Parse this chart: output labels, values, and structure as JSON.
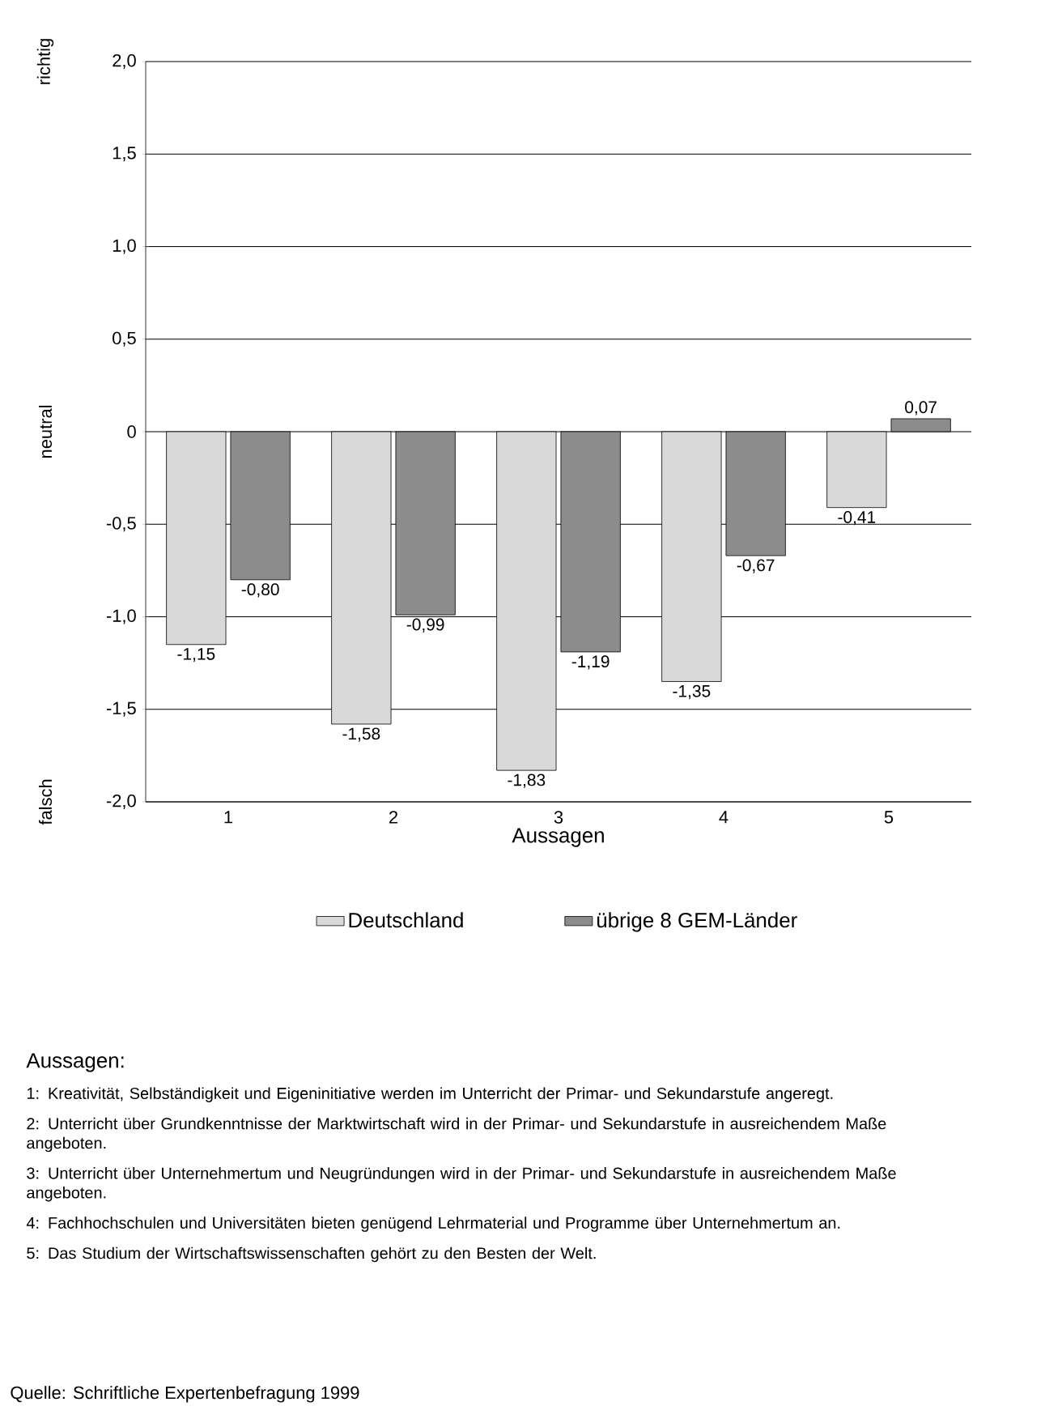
{
  "chart_data": {
    "type": "bar",
    "categories": [
      "1",
      "2",
      "3",
      "4",
      "5"
    ],
    "series": [
      {
        "name": "Deutschland",
        "color": "#d9d9d9",
        "values": [
          -1.15,
          -1.58,
          -1.83,
          -1.35,
          -0.41
        ],
        "value_labels": [
          "-1,15",
          "-1,58",
          "-1,83",
          "-1,35",
          "-0,41"
        ]
      },
      {
        "name": "übrige 8 GEM-Länder",
        "color": "#8c8c8c",
        "values": [
          -0.8,
          -0.99,
          -1.19,
          -0.67,
          0.07
        ],
        "value_labels": [
          "-0,80",
          "-0,99",
          "-1,19",
          "-0,67",
          "0,07"
        ]
      }
    ],
    "xlabel": "Aussagen",
    "ylim": [
      -2.0,
      2.0
    ],
    "yticks": [
      {
        "value": -2.0,
        "label": "-2,0"
      },
      {
        "value": -1.5,
        "label": "-1,5"
      },
      {
        "value": -1.0,
        "label": "-1,0"
      },
      {
        "value": -0.5,
        "label": "-0,5"
      },
      0,
      {
        "value": 0.5,
        "label": "0,5"
      },
      {
        "value": 1.0,
        "label": "1,0"
      },
      {
        "value": 1.5,
        "label": "1,5"
      },
      {
        "value": 2.0,
        "label": "2,0"
      }
    ],
    "grid": "y",
    "legend": "bottom",
    "annotations": [
      "richtig",
      "neutral",
      "falsch",
      "Aussagen:",
      "1: Kreativität, Selbständigkeit und Eigeninitiative werden im Unterricht der Primar- und Sekundarstufe angeregt.",
      "2: Unterricht über Grundkenntnisse der Marktwirtschaft wird in der Primar- und Sekundarstufe in ausreichendem Maße angeboten.",
      "3: Unterricht über Unternehmertum und Neugründungen wird in der Primar- und Sekundarstufe in ausreichendem Maße angeboten.",
      "4: Fachhochschulen und Universitäten bieten genügend Lehrmaterial und Programme über Unternehmertum an.",
      "5: Das Studium der Wirtschaftswissenschaften gehört zu den Besten der Welt.",
      "Quelle: Schriftliche Expertenbefragung 1999"
    ]
  }
}
